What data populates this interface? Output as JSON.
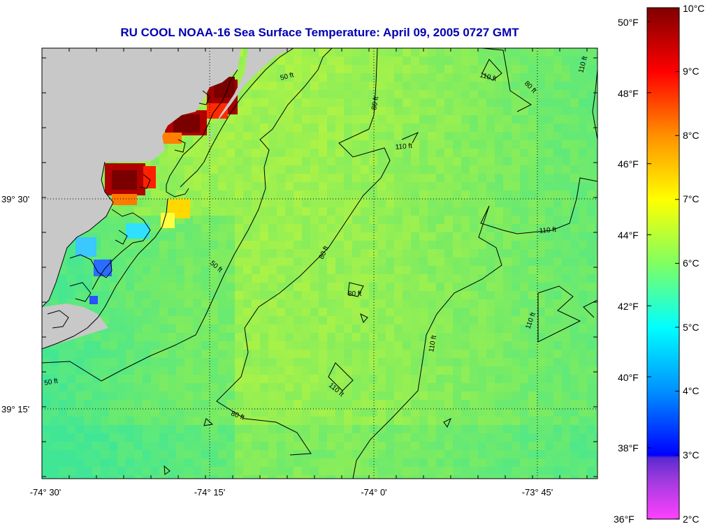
{
  "title": "RU COOL  NOAA-16  Sea Surface Temperature:  April 09, 2005 0727 GMT",
  "x_ticks": [
    "-74° 30'",
    "-74° 15'",
    "-74° 0'",
    "-73° 45'"
  ],
  "y_ticks": [
    "39° 30'",
    "39° 15'"
  ],
  "contour_labels": {
    "c50": "50 ft",
    "c80": "80 ft",
    "c110": "110 ft"
  },
  "colorbar": {
    "celsius": [
      "10°C",
      "9°C",
      "8°C",
      "7°C",
      "6°C",
      "5°C",
      "4°C",
      "3°C",
      "2°C"
    ],
    "fahrenheit": [
      "50°F",
      "48°F",
      "46°F",
      "44°F",
      "42°F",
      "40°F",
      "38°F",
      "36°F"
    ],
    "colors": [
      "#ff40ff",
      "#8c3cd8",
      "#0000ff",
      "#00a0ff",
      "#00ffff",
      "#40ff80",
      "#a0ff40",
      "#ffff00",
      "#ffa000",
      "#ff3000",
      "#ff0000",
      "#c80000",
      "#800000"
    ]
  },
  "colors": {
    "land": "#c8c8c8",
    "sea_base": "#7eeb68",
    "title": "#0000b4"
  }
}
